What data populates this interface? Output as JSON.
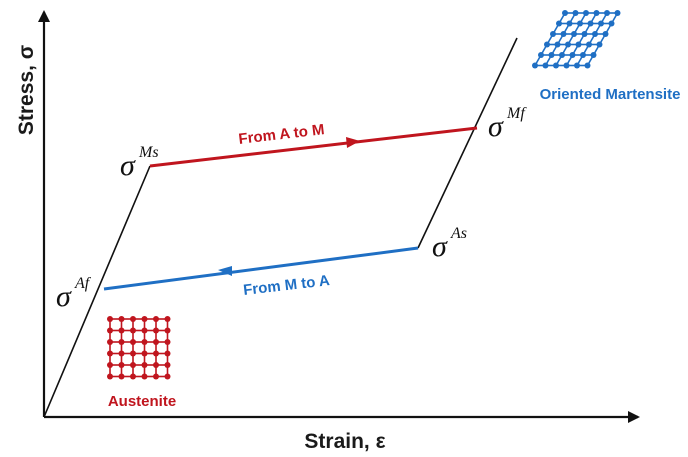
{
  "axes": {
    "y_title": "Stress, σ",
    "x_title": "Strain, ε"
  },
  "points": {
    "ms": {
      "symbol": "σ",
      "sup": "Ms"
    },
    "mf": {
      "symbol": "σ",
      "sup": "Mf"
    },
    "as": {
      "symbol": "σ",
      "sup": "As"
    },
    "af": {
      "symbol": "σ",
      "sup": "Af"
    }
  },
  "transitions": {
    "forward": {
      "label": "From A to M",
      "color": "#c0151e"
    },
    "reverse": {
      "label": "From M to A",
      "color": "#1f6fc4"
    }
  },
  "structures": {
    "austenite": {
      "label": "Austenite",
      "color": "#c0151e",
      "icon": "square-lattice-icon"
    },
    "martensite": {
      "label": "Oriented Martensite",
      "color": "#1f6fc4",
      "icon": "sheared-lattice-icon"
    }
  },
  "colors": {
    "curve": "#111111",
    "axis": "#111111"
  }
}
